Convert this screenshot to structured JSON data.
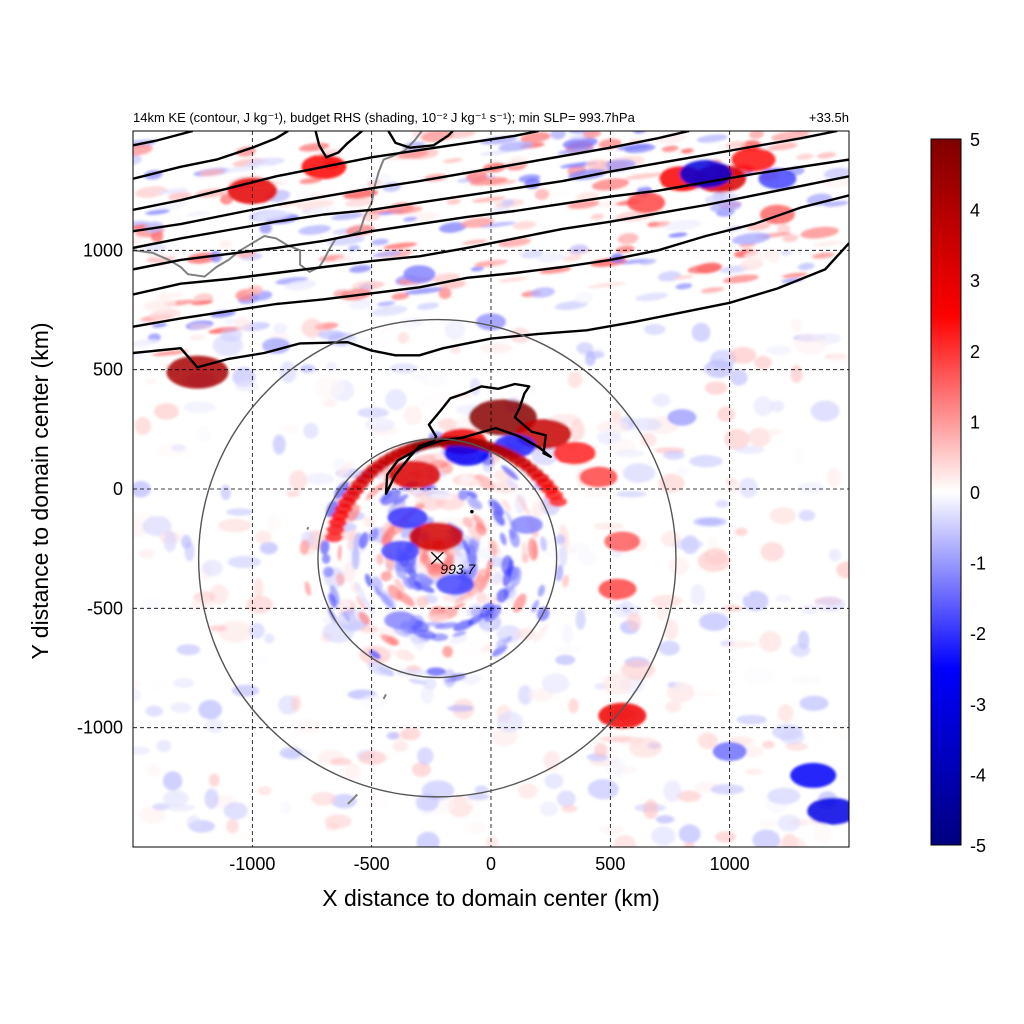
{
  "chart_data": {
    "type": "heatmap",
    "title_left": "14km KE (contour, J kg⁻¹), budget RHS (shading, 10⁻² J kg⁻¹ s⁻¹); min SLP= 993.7hPa",
    "title_right": "+33.5h",
    "xlabel": "X distance to domain center (km)",
    "ylabel": "Y distance to domain center (km)",
    "xlim": [
      -1500,
      1500
    ],
    "ylim": [
      -1500,
      1500
    ],
    "x_ticks": [
      -1000,
      -500,
      0,
      500,
      1000
    ],
    "y_ticks": [
      1000,
      500,
      0,
      -500,
      -1000
    ],
    "grid": "dashed",
    "colorbar": {
      "range": [
        -5,
        5
      ],
      "ticks": [
        5,
        4,
        3,
        2,
        1,
        0,
        -1,
        -2,
        -3,
        -4,
        -5
      ],
      "colors": [
        "#00007f",
        "#0000ff",
        "#ffffff",
        "#ff0000",
        "#7f0000"
      ]
    },
    "storm_center": {
      "x": -225,
      "y": -290,
      "label": "993.7"
    },
    "circles": [
      {
        "center": [
          -225,
          -290
        ],
        "radius": 500
      },
      {
        "center": [
          -225,
          -290
        ],
        "radius": 1000
      }
    ],
    "shading_features": [
      {
        "x": 50,
        "y": 300,
        "value": 4.8
      },
      {
        "x": 220,
        "y": 230,
        "value": 3.6
      },
      {
        "x": -120,
        "y": 200,
        "value": 2.8
      },
      {
        "x": -320,
        "y": 60,
        "value": 3.2
      },
      {
        "x": 350,
        "y": 150,
        "value": 2.2
      },
      {
        "x": 450,
        "y": 50,
        "value": 1.8
      },
      {
        "x": 550,
        "y": -220,
        "value": 1.6
      },
      {
        "x": 530,
        "y": -420,
        "value": 1.8
      },
      {
        "x": -230,
        "y": -200,
        "value": 3.4
      },
      {
        "x": -1230,
        "y": 490,
        "value": 4.2
      },
      {
        "x": 550,
        "y": -950,
        "value": 2.8
      },
      {
        "x": -1000,
        "y": 1250,
        "value": 3.0
      },
      {
        "x": -700,
        "y": 1350,
        "value": 2.5
      },
      {
        "x": 800,
        "y": 1300,
        "value": 2.6
      },
      {
        "x": 1100,
        "y": 1380,
        "value": 2.4
      },
      {
        "x": 960,
        "y": 1300,
        "value": 3.2
      },
      {
        "x": 650,
        "y": 1200,
        "value": 1.8
      },
      {
        "x": 1200,
        "y": 1150,
        "value": 1.5
      },
      {
        "x": -100,
        "y": 150,
        "value": -2.6
      },
      {
        "x": 100,
        "y": 180,
        "value": -2.2
      },
      {
        "x": -150,
        "y": -400,
        "value": -1.8
      },
      {
        "x": -350,
        "y": -120,
        "value": -2.0
      },
      {
        "x": -380,
        "y": -260,
        "value": -1.8
      },
      {
        "x": 150,
        "y": -150,
        "value": -1.2
      },
      {
        "x": -380,
        "y": -550,
        "value": -1.2
      },
      {
        "x": 0,
        "y": 700,
        "value": -1.0
      },
      {
        "x": -300,
        "y": 900,
        "value": -1.2
      },
      {
        "x": 900,
        "y": 1320,
        "value": -3.2
      },
      {
        "x": 1200,
        "y": 1300,
        "value": -1.8
      },
      {
        "x": 1350,
        "y": -1200,
        "value": -2.6
      },
      {
        "x": 1430,
        "y": -1350,
        "value": -3.0
      },
      {
        "x": 1000,
        "y": -1100,
        "value": -1.4
      },
      {
        "x": 800,
        "y": 300,
        "value": -0.9
      },
      {
        "x": -900,
        "y": 600,
        "value": -0.8
      }
    ],
    "background_band": {
      "description": "alternating red/blue streaks across northern jet",
      "y_center_at_x_min": 1000,
      "y_center_at_x_max": 1350
    },
    "ke_contours": [
      {
        "points": [
          [
            -1500,
            570
          ],
          [
            -1300,
            590
          ],
          [
            -1230,
            510
          ],
          [
            -1100,
            545
          ],
          [
            -950,
            570
          ],
          [
            -800,
            610
          ],
          [
            -600,
            615
          ],
          [
            -500,
            580
          ],
          [
            -400,
            560
          ],
          [
            -300,
            560
          ],
          [
            -200,
            590
          ],
          [
            0,
            630
          ],
          [
            200,
            650
          ],
          [
            400,
            665
          ],
          [
            600,
            700
          ],
          [
            800,
            740
          ],
          [
            1000,
            780
          ],
          [
            1200,
            840
          ],
          [
            1400,
            920
          ],
          [
            1500,
            1030
          ]
        ]
      },
      {
        "points": [
          [
            -1500,
            680
          ],
          [
            -1300,
            715
          ],
          [
            -1100,
            745
          ],
          [
            -900,
            775
          ],
          [
            -700,
            795
          ],
          [
            -500,
            820
          ],
          [
            -300,
            845
          ],
          [
            -100,
            885
          ],
          [
            100,
            905
          ],
          [
            300,
            930
          ],
          [
            500,
            960
          ],
          [
            700,
            1000
          ],
          [
            900,
            1060
          ],
          [
            1100,
            1110
          ],
          [
            1300,
            1180
          ],
          [
            1500,
            1230
          ]
        ]
      },
      {
        "points": [
          [
            -1500,
            815
          ],
          [
            -1300,
            860
          ],
          [
            -1100,
            880
          ],
          [
            -900,
            905
          ],
          [
            -700,
            930
          ],
          [
            -500,
            955
          ],
          [
            -300,
            975
          ],
          [
            -100,
            1010
          ],
          [
            100,
            1050
          ],
          [
            300,
            1090
          ],
          [
            500,
            1120
          ],
          [
            700,
            1155
          ],
          [
            900,
            1190
          ],
          [
            1100,
            1230
          ],
          [
            1300,
            1270
          ],
          [
            1500,
            1310
          ]
        ]
      },
      {
        "points": [
          [
            -1500,
            920
          ],
          [
            -1300,
            960
          ],
          [
            -1100,
            985
          ],
          [
            -900,
            1010
          ],
          [
            -700,
            1040
          ],
          [
            -500,
            1080
          ],
          [
            -300,
            1110
          ],
          [
            -100,
            1140
          ],
          [
            100,
            1165
          ],
          [
            300,
            1195
          ],
          [
            500,
            1225
          ],
          [
            700,
            1250
          ],
          [
            900,
            1285
          ],
          [
            1100,
            1320
          ],
          [
            1300,
            1350
          ],
          [
            1500,
            1380
          ]
        ]
      },
      {
        "points": [
          [
            -1500,
            1010
          ],
          [
            -1300,
            1050
          ],
          [
            -1100,
            1085
          ],
          [
            -900,
            1120
          ],
          [
            -700,
            1150
          ],
          [
            -500,
            1170
          ],
          [
            -300,
            1200
          ],
          [
            -100,
            1230
          ],
          [
            100,
            1260
          ],
          [
            300,
            1290
          ],
          [
            500,
            1330
          ],
          [
            700,
            1365
          ],
          [
            900,
            1400
          ],
          [
            1100,
            1435
          ],
          [
            1300,
            1470
          ],
          [
            1450,
            1500
          ]
        ]
      },
      {
        "points": [
          [
            -1500,
            1080
          ],
          [
            -1300,
            1110
          ],
          [
            -1100,
            1150
          ],
          [
            -900,
            1190
          ],
          [
            -700,
            1225
          ],
          [
            -500,
            1260
          ],
          [
            -300,
            1290
          ],
          [
            -100,
            1325
          ],
          [
            100,
            1360
          ],
          [
            300,
            1395
          ],
          [
            500,
            1430
          ],
          [
            700,
            1470
          ],
          [
            830,
            1500
          ]
        ]
      },
      {
        "points": [
          [
            -1500,
            1170
          ],
          [
            -1300,
            1210
          ],
          [
            -1100,
            1260
          ],
          [
            -900,
            1310
          ],
          [
            -700,
            1350
          ],
          [
            -500,
            1390
          ],
          [
            -300,
            1420
          ],
          [
            -100,
            1450
          ],
          [
            100,
            1480
          ],
          [
            200,
            1500
          ]
        ]
      },
      {
        "points": [
          [
            -1500,
            1300
          ],
          [
            -1300,
            1350
          ],
          [
            -1150,
            1380
          ],
          [
            -1000,
            1430
          ],
          [
            -900,
            1470
          ],
          [
            -850,
            1500
          ]
        ]
      },
      {
        "points": [
          [
            -1500,
            1440
          ],
          [
            -1400,
            1460
          ],
          [
            -1250,
            1500
          ]
        ]
      },
      {
        "points": [
          [
            -735,
            1500
          ],
          [
            -720,
            1440
          ],
          [
            -690,
            1390
          ],
          [
            -640,
            1410
          ],
          [
            -600,
            1450
          ],
          [
            -540,
            1500
          ]
        ],
        "closed": false
      },
      {
        "points": [
          [
            -430,
            1500
          ],
          [
            -400,
            1450
          ],
          [
            -340,
            1430
          ],
          [
            -240,
            1440
          ],
          [
            -180,
            1480
          ],
          [
            -160,
            1500
          ]
        ],
        "closed": false
      },
      {
        "points": [
          [
            -440,
            -20
          ],
          [
            -435,
            60
          ],
          [
            -390,
            120
          ],
          [
            -290,
            175
          ],
          [
            -200,
            205
          ],
          [
            -120,
            215
          ],
          [
            -50,
            235
          ],
          [
            20,
            255
          ],
          [
            120,
            220
          ],
          [
            200,
            175
          ],
          [
            250,
            135
          ],
          [
            220,
            150
          ],
          [
            230,
            225
          ],
          [
            170,
            240
          ],
          [
            100,
            300
          ],
          [
            120,
            340
          ],
          [
            140,
            400
          ],
          [
            160,
            430
          ],
          [
            100,
            440
          ],
          [
            30,
            420
          ],
          [
            -40,
            430
          ],
          [
            -110,
            400
          ],
          [
            -170,
            380
          ],
          [
            -210,
            330
          ],
          [
            -260,
            270
          ],
          [
            -230,
            220
          ],
          [
            -240,
            200
          ],
          [
            -300,
            180
          ],
          [
            -340,
            135
          ],
          [
            -400,
            60
          ],
          [
            -440,
            -20
          ]
        ],
        "closed": true
      }
    ],
    "coastline": [
      [
        [
          -1500,
          1000
        ],
        [
          -1420,
          990
        ],
        [
          -1350,
          960
        ],
        [
          -1300,
          930
        ],
        [
          -1270,
          900
        ],
        [
          -1200,
          890
        ],
        [
          -1150,
          930
        ],
        [
          -1100,
          960
        ],
        [
          -1050,
          1000
        ],
        [
          -1000,
          1030
        ],
        [
          -950,
          1060
        ],
        [
          -900,
          1050
        ],
        [
          -850,
          1020
        ],
        [
          -800,
          1000
        ],
        [
          -800,
          940
        ],
        [
          -760,
          910
        ],
        [
          -720,
          930
        ],
        [
          -700,
          960
        ],
        [
          -680,
          1000
        ],
        [
          -650,
          1050
        ],
        [
          -600,
          1060
        ],
        [
          -550,
          1080
        ],
        [
          -530,
          1140
        ],
        [
          -500,
          1200
        ],
        [
          -490,
          1260
        ],
        [
          -470,
          1330
        ],
        [
          -450,
          1380
        ],
        [
          -400,
          1400
        ],
        [
          -360,
          1420
        ],
        [
          -320,
          1460
        ],
        [
          -290,
          1500
        ]
      ],
      [
        [
          -600,
          -1320
        ],
        [
          -580,
          -1300
        ],
        [
          -560,
          -1280
        ]
      ],
      [
        [
          -450,
          -880
        ],
        [
          -440,
          -860
        ]
      ],
      [
        [
          -770,
          -170
        ],
        [
          -765,
          -160
        ]
      ]
    ]
  }
}
